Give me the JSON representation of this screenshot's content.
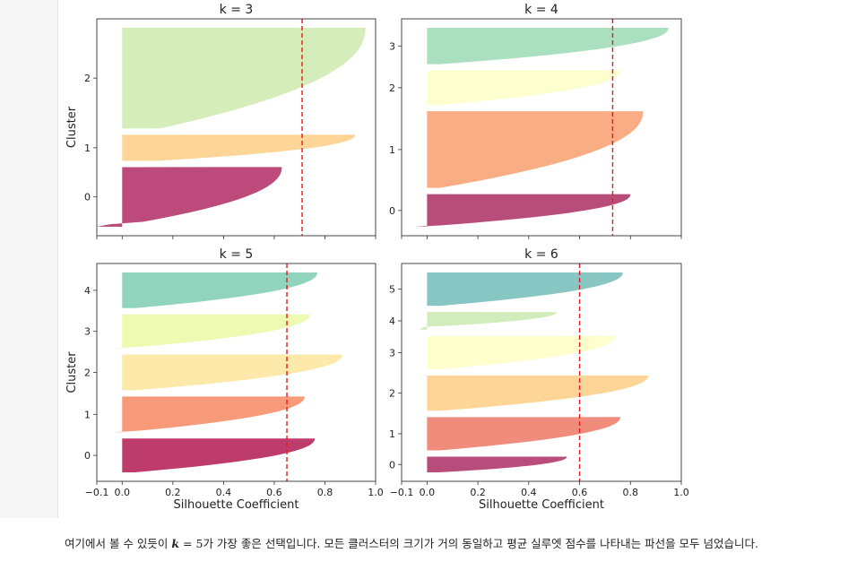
{
  "chart_data": [
    {
      "type": "silhouette",
      "title": "k = 3",
      "xlim": [
        -0.1,
        1.0
      ],
      "ylabel": "Cluster",
      "xlabel": "",
      "average_score": 0.71,
      "y_ticks": [
        "0",
        "1",
        "2"
      ],
      "clusters": [
        {
          "label": "0",
          "color": "#bc4b7b",
          "size": 0.32,
          "max": 0.63,
          "min": -0.1,
          "neg_frac": 0.06
        },
        {
          "label": "1",
          "color": "#fdd598",
          "size": 0.14,
          "max": 0.92,
          "min": 0.14,
          "neg_frac": 0.0
        },
        {
          "label": "2",
          "color": "#d4edbb",
          "size": 0.54,
          "max": 0.96,
          "min": 0.15,
          "neg_frac": 0.0
        }
      ]
    },
    {
      "type": "silhouette",
      "title": "k = 4",
      "xlim": [
        -0.1,
        1.0
      ],
      "ylabel": "",
      "xlabel": "",
      "average_score": 0.73,
      "y_ticks": [
        "0",
        "1",
        "2",
        "3"
      ],
      "clusters": [
        {
          "label": "0",
          "color": "#b94d7a",
          "size": 0.17,
          "max": 0.8,
          "min": -0.05,
          "neg_frac": 0.04
        },
        {
          "label": "1",
          "color": "#f9ad85",
          "size": 0.4,
          "max": 0.85,
          "min": 0.0,
          "neg_frac": 0.0
        },
        {
          "label": "2",
          "color": "#feffce",
          "size": 0.18,
          "max": 0.76,
          "min": 0.0,
          "neg_frac": 0.0
        },
        {
          "label": "3",
          "color": "#aadfc0",
          "size": 0.19,
          "max": 0.95,
          "min": 0.0,
          "neg_frac": 0.0
        }
      ]
    },
    {
      "type": "silhouette",
      "title": "k = 5",
      "xlim": [
        -0.1,
        1.0
      ],
      "ylabel": "Cluster",
      "xlabel": "Silhouette Coefficient",
      "average_score": 0.65,
      "x_ticks": [
        "−0.1",
        "0.0",
        "0.2",
        "0.4",
        "0.6",
        "0.8",
        "1.0"
      ],
      "y_ticks": [
        "0",
        "1",
        "2",
        "3",
        "4"
      ],
      "clusters": [
        {
          "label": "0",
          "color": "#be3c6c",
          "size": 0.19,
          "max": 0.76,
          "min": 0.0,
          "neg_frac": 0.0
        },
        {
          "label": "1",
          "color": "#f69a7a",
          "size": 0.2,
          "max": 0.72,
          "min": -0.03,
          "neg_frac": 0.03
        },
        {
          "label": "2",
          "color": "#fde9a9",
          "size": 0.2,
          "max": 0.87,
          "min": 0.0,
          "neg_frac": 0.0
        },
        {
          "label": "3",
          "color": "#eef9b2",
          "size": 0.19,
          "max": 0.74,
          "min": -0.05,
          "neg_frac": 0.03
        },
        {
          "label": "4",
          "color": "#91d4be",
          "size": 0.2,
          "max": 0.77,
          "min": 0.0,
          "neg_frac": 0.0
        }
      ]
    },
    {
      "type": "silhouette",
      "title": "k = 6",
      "xlim": [
        -0.1,
        1.0
      ],
      "ylabel": "",
      "xlabel": "Silhouette Coefficient",
      "average_score": 0.6,
      "x_ticks": [
        "−0.1",
        "0.0",
        "0.2",
        "0.4",
        "0.6",
        "0.8",
        "1.0"
      ],
      "y_ticks": [
        "0",
        "1",
        "2",
        "3",
        "4",
        "5"
      ],
      "clusters": [
        {
          "label": "0",
          "color": "#b84d7c",
          "size": 0.08,
          "max": 0.55,
          "min": 0.0,
          "neg_frac": 0.0
        },
        {
          "label": "1",
          "color": "#f08c7c",
          "size": 0.17,
          "max": 0.76,
          "min": 0.0,
          "neg_frac": 0.0
        },
        {
          "label": "2",
          "color": "#fdd697",
          "size": 0.18,
          "max": 0.87,
          "min": 0.0,
          "neg_frac": 0.0
        },
        {
          "label": "3",
          "color": "#feffcc",
          "size": 0.17,
          "max": 0.74,
          "min": 0.0,
          "neg_frac": 0.0
        },
        {
          "label": "4",
          "color": "#d3ecbb",
          "size": 0.09,
          "max": 0.51,
          "min": -0.03,
          "neg_frac": 0.2
        },
        {
          "label": "5",
          "color": "#88c6c4",
          "size": 0.17,
          "max": 0.77,
          "min": 0.0,
          "neg_frac": 0.0
        }
      ]
    }
  ],
  "caption": {
    "before": "여기에서 볼 수 있듯이 ",
    "k": "k",
    "eq": " = ",
    "five": "5",
    "after": "가 가장 좋은 선택입니다. 모든 클러스터의 크기가 거의 동일하고 평균 실루엣 점수를 나타내는 파선을 모두 넘었습니다."
  }
}
